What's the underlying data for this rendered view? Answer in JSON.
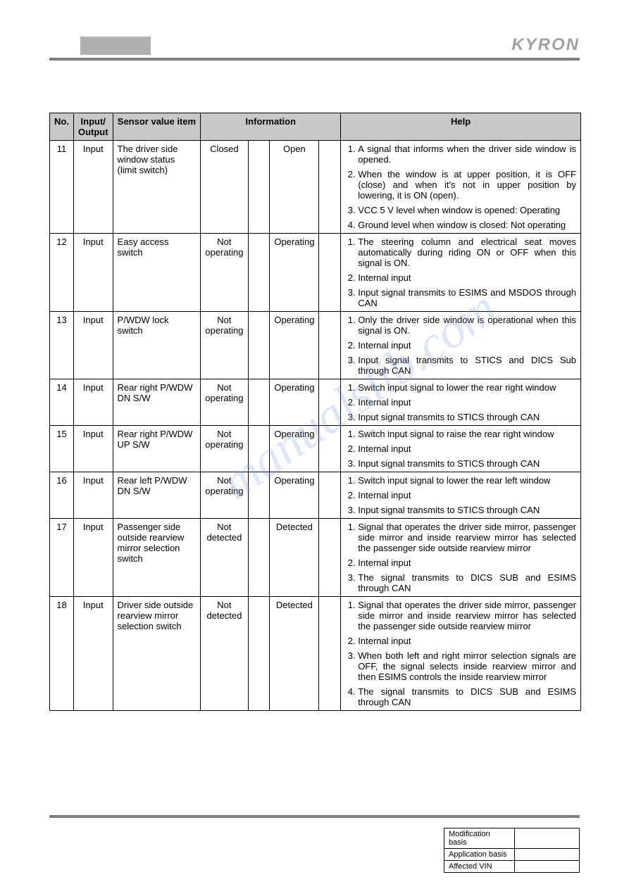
{
  "brand": "KYRON",
  "watermark": "manualslib.com",
  "headers": {
    "no": "No.",
    "io": "Input/\nOutput",
    "sensor": "Sensor value item",
    "info": "Information",
    "help": "Help"
  },
  "rows": [
    {
      "no": "11",
      "io": "Input",
      "sensor": "The driver side window status (limit switch)",
      "info1": "Closed",
      "info3": "Open",
      "help": [
        "A signal that informs when the driver side window is opened.",
        "When the window is at upper position, it is OFF (close) and when it's not in upper position by lowering, it is ON (open).",
        "VCC 5 V level when window is opened: Operating",
        "Ground level when window is closed: Not operating"
      ]
    },
    {
      "no": "12",
      "io": "Input",
      "sensor": "Easy access switch",
      "info1": "Not operating",
      "info3": "Operating",
      "help": [
        "The steering column and electrical seat moves automatically during riding ON or OFF when this signal is ON.",
        "Internal input",
        "Input signal transmits to ESIMS and MSDOS through CAN"
      ]
    },
    {
      "no": "13",
      "io": "Input",
      "sensor": "P/WDW lock switch",
      "info1": "Not operating",
      "info3": "Operating",
      "help": [
        "Only the driver side window is operational when this signal is ON.",
        "Internal input",
        "Input signal transmits to STICS and DICS Sub through CAN"
      ]
    },
    {
      "no": "14",
      "io": "Input",
      "sensor": "Rear right P/WDW DN S/W",
      "info1": "Not operating",
      "info3": "Operating",
      "help": [
        "Switch input signal to lower the rear right window",
        "Internal input",
        "Input signal transmits to STICS through CAN"
      ]
    },
    {
      "no": "15",
      "io": "Input",
      "sensor": "Rear right P/WDW UP S/W",
      "info1": "Not operating",
      "info3": "Operating",
      "help": [
        "Switch input signal to raise the rear right window",
        "Internal input",
        "Input signal transmits to STICS through CAN"
      ]
    },
    {
      "no": "16",
      "io": "Input",
      "sensor": "Rear left P/WDW DN S/W",
      "info1": "Not operating",
      "info3": "Operating",
      "help": [
        "Switch input signal to lower the rear left window",
        "Internal input",
        "Input signal transmits to STICS through CAN"
      ]
    },
    {
      "no": "17",
      "io": "Input",
      "sensor": "Passenger side outside rearview mirror selection switch",
      "info1": "Not detected",
      "info3": "Detected",
      "help": [
        "Signal that operates the driver side mirror, passenger side mirror and inside rearview mirror has selected the passenger side outside rearview mirror",
        "Internal input",
        "The signal transmits to DICS SUB and ESIMS through CAN"
      ]
    },
    {
      "no": "18",
      "io": "Input",
      "sensor": "Driver side outside rearview mirror selection switch",
      "info1": "Not detected",
      "info3": "Detected",
      "help": [
        "Signal that operates the driver side mirror, passenger side mirror and inside rearview mirror has selected the passenger side outside rearview mirror",
        "Internal input",
        "When both left and right mirror selection signals are OFF, the signal selects inside rearview mirror and then ESIMS controls the inside rearview mirror",
        "The signal transmits to DICS SUB and ESIMS through CAN"
      ]
    }
  ],
  "footer": {
    "mod_basis": "Modification basis",
    "app_basis": "Application basis",
    "vin": "Affected VIN"
  }
}
